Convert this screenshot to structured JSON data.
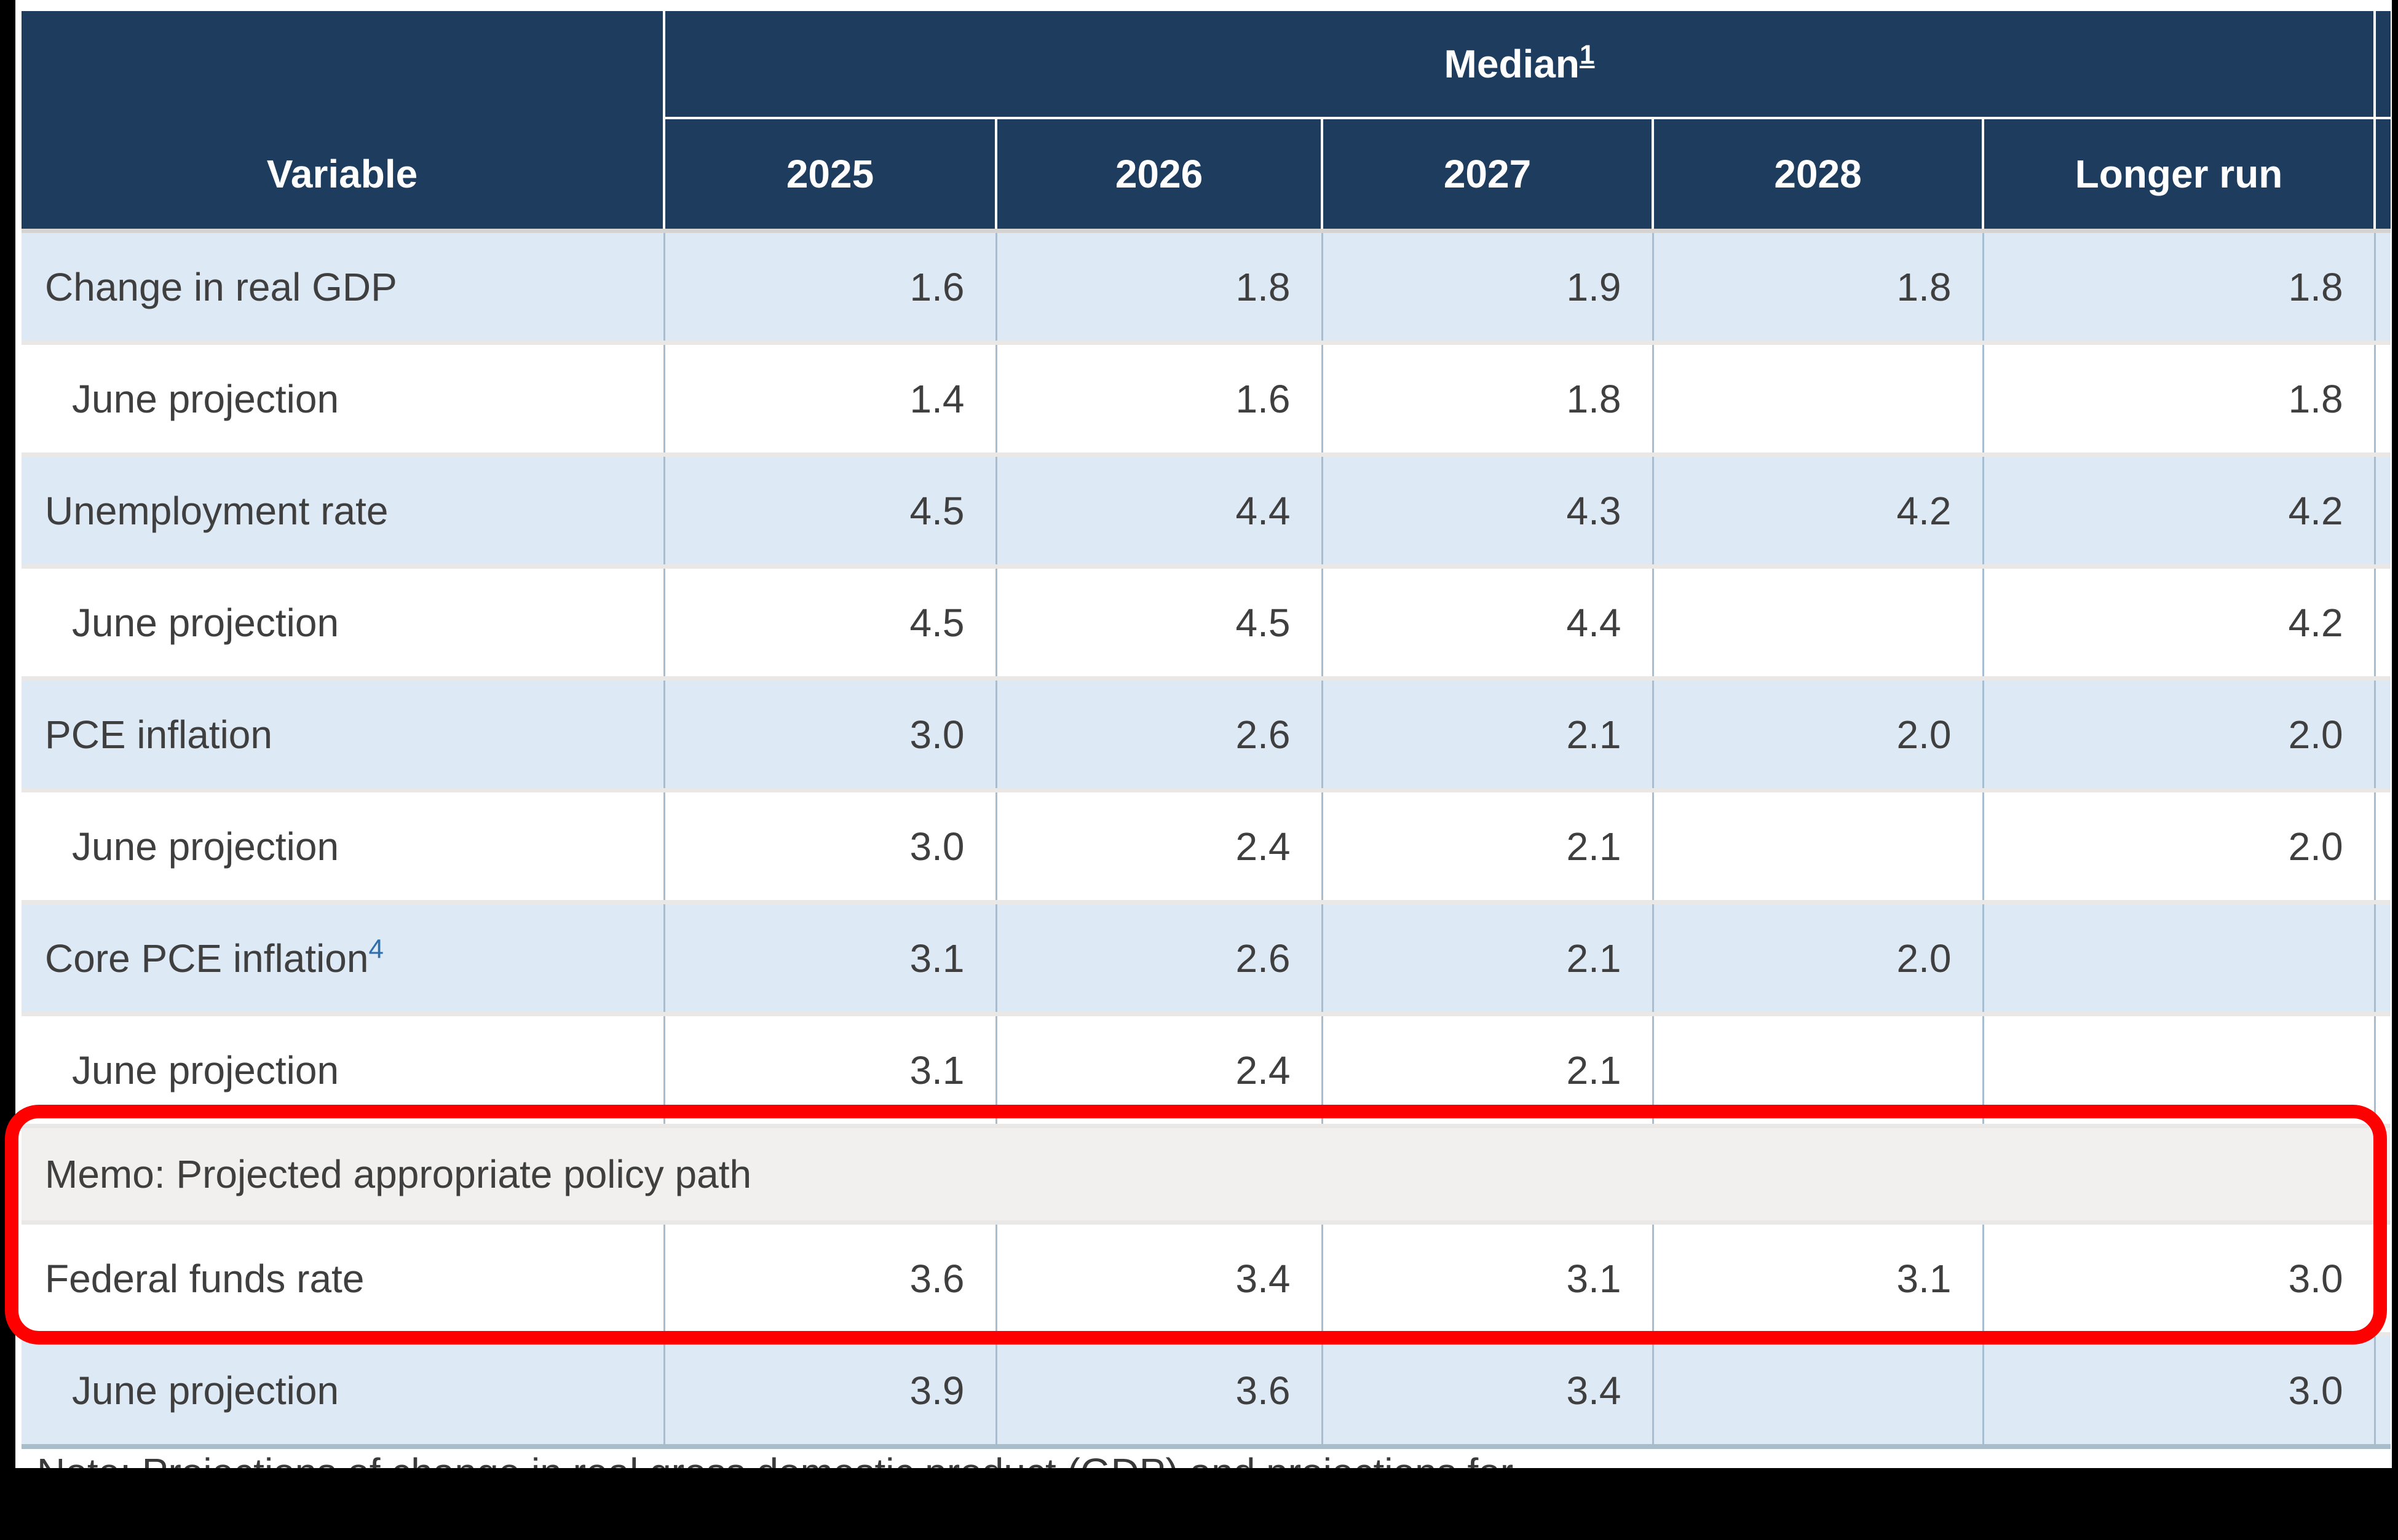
{
  "table": {
    "header": {
      "variable_label": "Variable",
      "median_label": "Median",
      "median_footnote": "1",
      "columns": [
        "2025",
        "2026",
        "2027",
        "2028",
        "Longer run"
      ]
    },
    "rows": [
      {
        "label": "Change in real GDP",
        "indent": false,
        "shade": "blue",
        "values": [
          "1.6",
          "1.8",
          "1.9",
          "1.8",
          "1.8"
        ]
      },
      {
        "label": "June projection",
        "indent": true,
        "shade": "white",
        "values": [
          "1.4",
          "1.6",
          "1.8",
          "",
          "1.8"
        ]
      },
      {
        "label": "Unemployment rate",
        "indent": false,
        "shade": "blue",
        "values": [
          "4.5",
          "4.4",
          "4.3",
          "4.2",
          "4.2"
        ]
      },
      {
        "label": "June projection",
        "indent": true,
        "shade": "white",
        "values": [
          "4.5",
          "4.5",
          "4.4",
          "",
          "4.2"
        ]
      },
      {
        "label": "PCE inflation",
        "indent": false,
        "shade": "blue",
        "values": [
          "3.0",
          "2.6",
          "2.1",
          "2.0",
          "2.0"
        ]
      },
      {
        "label": "June projection",
        "indent": true,
        "shade": "white",
        "values": [
          "3.0",
          "2.4",
          "2.1",
          "",
          "2.0"
        ]
      },
      {
        "label": "Core PCE inflation",
        "footnote": "4",
        "indent": false,
        "shade": "blue",
        "values": [
          "3.1",
          "2.6",
          "2.1",
          "2.0",
          ""
        ]
      },
      {
        "label": "June projection",
        "indent": true,
        "shade": "white",
        "values": [
          "3.1",
          "2.4",
          "2.1",
          "",
          ""
        ]
      },
      {
        "label": "Memo: Projected appropriate policy path",
        "memo": true
      },
      {
        "label": "Federal funds rate",
        "indent": false,
        "shade": "white",
        "values": [
          "3.6",
          "3.4",
          "3.1",
          "3.1",
          "3.0"
        ]
      },
      {
        "label": "June projection",
        "indent": true,
        "shade": "blue",
        "values": [
          "3.9",
          "3.6",
          "3.4",
          "",
          "3.0"
        ]
      }
    ],
    "note_partial": "Note: Projections of change in real gross domestic product (GDP) and projections for..."
  },
  "annotation": {
    "type": "red-rounded-rectangle",
    "highlights": "Memo: Projected appropriate policy path + Federal funds rate row",
    "color": "#FF0000"
  },
  "colors": {
    "header_navy": "#1D3C5E",
    "row_blue": "#DDE9F4",
    "row_white": "#FFFFFF",
    "memo_gray": "#F1F0EE",
    "grid_line": "#A7BDD1",
    "footnote_link_blue": "#2F6FAD",
    "annotation_red": "#FF0000",
    "frame_black": "#000000"
  }
}
